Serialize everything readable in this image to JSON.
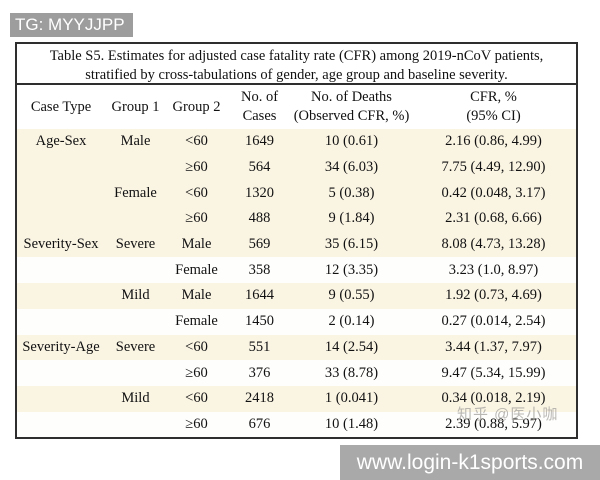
{
  "top_banner": {
    "text": "TG: MYYJJPP"
  },
  "bottom_banner": {
    "text": "www.login-k1sports.com"
  },
  "watermark": {
    "text": "知乎 @医小咖"
  },
  "colors": {
    "banner_gray": "#9d9d9d",
    "bottom_banner_gray": "#a9a9a9",
    "row_cream": "#faf4e3",
    "row_white": "#fefefd",
    "table_border": "#2e2e2e",
    "text": "#111111",
    "watermark_gray": "#a9a7a3"
  },
  "table": {
    "title_line1": "Table S5. Estimates for adjusted case fatality rate (CFR) among 2019-nCoV patients,",
    "title_line2": "stratified by cross-tabulations of gender, age group and baseline severity.",
    "headers": {
      "case_type": "Case Type",
      "group1": "Group 1",
      "group2": "Group 2",
      "cases_l1": "No. of",
      "cases_l2": "Cases",
      "deaths_l1": "No. of Deaths",
      "deaths_l2": "(Observed CFR, %)",
      "cfr_l1": "CFR, %",
      "cfr_l2": "(95% CI)"
    },
    "rows": [
      {
        "case_type": "Age-Sex",
        "group1": "Male",
        "group2": "<60",
        "cases": "1649",
        "deaths": "10 (0.61)",
        "cfr": "2.16 (0.86, 4.99)",
        "band": "cream"
      },
      {
        "case_type": "",
        "group1": "",
        "group2": "≥60",
        "cases": "564",
        "deaths": "34 (6.03)",
        "cfr": "7.75 (4.49, 12.90)",
        "band": "cream"
      },
      {
        "case_type": "",
        "group1": "Female",
        "group2": "<60",
        "cases": "1320",
        "deaths": "5 (0.38)",
        "cfr": "0.42 (0.048, 3.17)",
        "band": "cream"
      },
      {
        "case_type": "",
        "group1": "",
        "group2": "≥60",
        "cases": "488",
        "deaths": "9 (1.84)",
        "cfr": "2.31 (0.68, 6.66)",
        "band": "cream"
      },
      {
        "case_type": "Severity-Sex",
        "group1": "Severe",
        "group2": "Male",
        "cases": "569",
        "deaths": "35 (6.15)",
        "cfr": "8.08 (4.73, 13.28)",
        "band": "cream"
      },
      {
        "case_type": "",
        "group1": "",
        "group2": "Female",
        "cases": "358",
        "deaths": "12 (3.35)",
        "cfr": "3.23 (1.0, 8.97)",
        "band": "white"
      },
      {
        "case_type": "",
        "group1": "Mild",
        "group2": "Male",
        "cases": "1644",
        "deaths": "9 (0.55)",
        "cfr": "1.92 (0.73, 4.69)",
        "band": "cream"
      },
      {
        "case_type": "",
        "group1": "",
        "group2": "Female",
        "cases": "1450",
        "deaths": "2 (0.14)",
        "cfr": "0.27 (0.014, 2.54)",
        "band": "white"
      },
      {
        "case_type": "Severity-Age",
        "group1": "Severe",
        "group2": "<60",
        "cases": "551",
        "deaths": "14 (2.54)",
        "cfr": "3.44 (1.37, 7.97)",
        "band": "cream"
      },
      {
        "case_type": "",
        "group1": "",
        "group2": "≥60",
        "cases": "376",
        "deaths": "33 (8.78)",
        "cfr": "9.47 (5.34, 15.99)",
        "band": "white"
      },
      {
        "case_type": "",
        "group1": "Mild",
        "group2": "<60",
        "cases": "2418",
        "deaths": "1 (0.041)",
        "cfr": "0.34 (0.018, 2.19)",
        "band": "cream"
      },
      {
        "case_type": "",
        "group1": "",
        "group2": "≥60",
        "cases": "676",
        "deaths": "10 (1.48)",
        "cfr": "2.39 (0.88, 5.97)",
        "band": "white"
      }
    ]
  }
}
